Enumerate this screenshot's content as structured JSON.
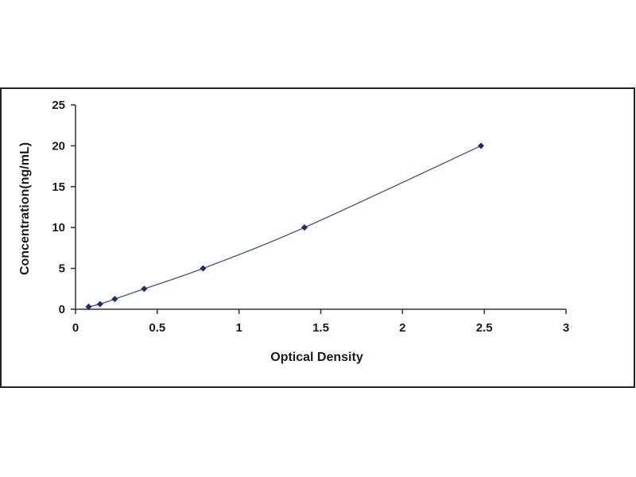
{
  "chart_data": {
    "type": "scatter",
    "title": "",
    "xlabel": "Optical Density",
    "ylabel": "Concentration(ng/mL)",
    "xlim": [
      0,
      3
    ],
    "ylim": [
      0,
      25
    ],
    "x_ticks": [
      "0",
      "0.5",
      "1",
      "1.5",
      "2",
      "2.5",
      "3"
    ],
    "y_ticks": [
      "0",
      "5",
      "10",
      "15",
      "20",
      "25"
    ],
    "grid": false,
    "legend": "none",
    "series": [
      {
        "x": [
          0.08,
          0.15,
          0.24,
          0.42,
          0.78,
          1.4,
          2.48
        ],
        "y": [
          0.31,
          0.63,
          1.25,
          2.5,
          5,
          10,
          20
        ],
        "marker": "diamond",
        "color": "#1f2a6b",
        "trendline": "smooth curve",
        "line_color": "#4a5a8c"
      }
    ]
  }
}
